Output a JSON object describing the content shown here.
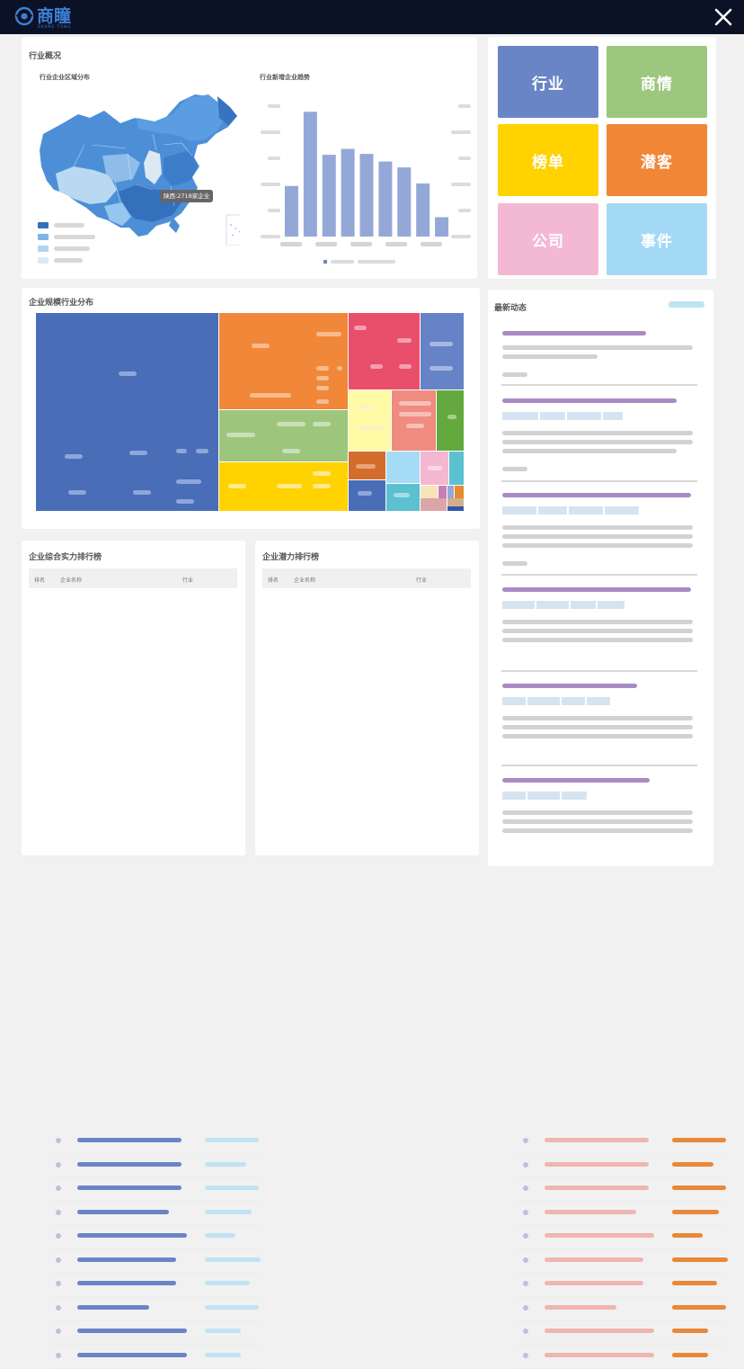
{
  "app": {
    "name": "商瞳",
    "subtitle": "SHANG TONG"
  },
  "overview": {
    "title": "行业概况",
    "map": {
      "title": "行业企业区域分布",
      "tooltip": "陕西:2718家企业"
    },
    "trend": {
      "title": "行业新增企业趋势"
    }
  },
  "nav_tiles": [
    {
      "label": "行业",
      "color": "#6a85c6"
    },
    {
      "label": "商情",
      "color": "#9dc77e"
    },
    {
      "label": "榜单",
      "color": "#ffd200"
    },
    {
      "label": "潜客",
      "color": "#f18736"
    },
    {
      "label": "公司",
      "color": "#f3b9d4"
    },
    {
      "label": "事件",
      "color": "#a4d9f5"
    }
  ],
  "treemap": {
    "title": "企业规模行业分布"
  },
  "rank_strength": {
    "title": "企业综合实力排行榜",
    "columns": [
      "排名",
      "企业名称",
      "行业"
    ],
    "row_count": 10
  },
  "rank_potential": {
    "title": "企业潜力排行榜",
    "columns": [
      "排名",
      "企业名称",
      "行业"
    ],
    "row_count": 10
  },
  "news": {
    "title": "最新动态"
  },
  "colors": {
    "topbar": "#0c1226",
    "brand": "#3d7fd6",
    "bar_fill": "#94a8d8",
    "strength_name": "#6a85c6",
    "strength_industry": "#c0e2f5",
    "potential_name": "#efb5b2",
    "potential_industry": "#e8883a",
    "news_headline": "#a98bc4"
  },
  "chart_data": {
    "type": "bar",
    "title": "行业新增企业趋势",
    "categories": [
      "",
      "",
      "",
      "",
      "",
      "",
      "",
      "",
      ""
    ],
    "values": [
      60,
      148,
      97,
      104,
      98,
      89,
      82,
      63,
      23
    ],
    "ylim": [
      0,
      160
    ]
  }
}
